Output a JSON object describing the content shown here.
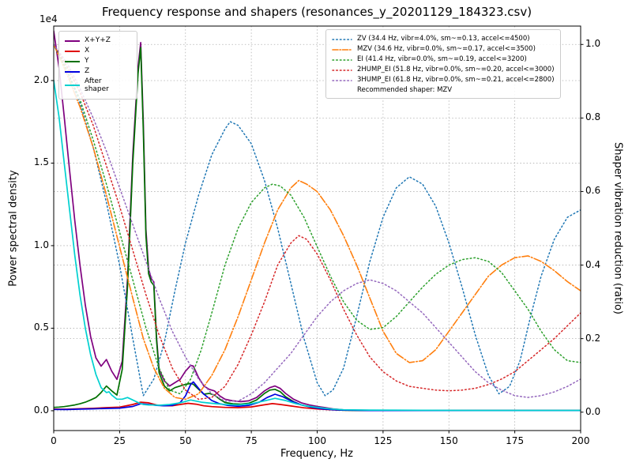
{
  "chart_data": {
    "type": "line",
    "title": "Frequency response and shapers (resonances_y_20201129_184323.csv)",
    "xlabel": "Frequency, Hz",
    "xlim": [
      0,
      200
    ],
    "x_ticks": [
      0,
      25,
      50,
      75,
      100,
      125,
      150,
      175,
      200
    ],
    "grid": true,
    "left_axis": {
      "label": "Power spectral density",
      "offset_text": "1e4",
      "ticks": [
        "0.0",
        "0.5",
        "1.0",
        "1.5",
        "2.0"
      ],
      "tick_values": [
        0,
        5000,
        10000,
        15000,
        20000
      ],
      "ylim": [
        -1200,
        23300
      ]
    },
    "right_axis": {
      "label": "Shaper vibration reduction (ratio)",
      "ticks": [
        "0.0",
        "0.2",
        "0.4",
        "0.6",
        "0.8",
        "1.0"
      ],
      "tick_values": [
        0,
        0.2,
        0.4,
        0.6,
        0.8,
        1.0
      ],
      "ylim": [
        -0.05,
        1.05
      ]
    },
    "legend_note": "Recommended shaper: MZV",
    "psd_series": [
      {
        "id": "xyz",
        "name": "X+Y+Z",
        "color": "#7f007f",
        "style": "solid",
        "width": 1.7,
        "x": [
          0,
          2,
          4,
          6,
          8,
          10,
          12,
          14,
          16,
          18,
          20,
          22,
          24,
          26,
          28,
          30,
          32,
          33,
          34,
          35,
          36,
          37,
          38,
          39,
          40,
          42,
          44,
          46,
          48,
          50,
          52,
          53,
          55,
          57,
          59,
          61,
          63,
          65,
          68,
          71,
          74,
          77,
          80,
          82,
          84,
          86,
          88,
          91,
          94,
          97,
          100,
          103,
          106,
          110,
          115,
          120,
          130,
          140,
          150,
          160,
          170,
          180,
          190,
          200
        ],
        "y": [
          23000,
          20800,
          17800,
          14600,
          11500,
          8800,
          6400,
          4500,
          3200,
          2700,
          3100,
          2400,
          1900,
          3000,
          8000,
          15500,
          20800,
          22300,
          17500,
          11000,
          8600,
          8000,
          7800,
          4500,
          2500,
          1800,
          1500,
          1700,
          1900,
          2400,
          2750,
          2700,
          2000,
          1500,
          1300,
          1200,
          900,
          700,
          600,
          550,
          600,
          800,
          1200,
          1400,
          1500,
          1350,
          1050,
          700,
          480,
          350,
          260,
          190,
          110,
          50,
          35,
          28,
          22,
          20,
          20,
          20,
          20,
          20,
          20,
          20
        ]
      },
      {
        "id": "x",
        "name": "X",
        "color": "#e00000",
        "style": "solid",
        "width": 1.7,
        "x": [
          0,
          5,
          10,
          15,
          20,
          25,
          30,
          33,
          36,
          39,
          42,
          45,
          48,
          51,
          54,
          57,
          60,
          65,
          70,
          75,
          80,
          83,
          86,
          90,
          95,
          100,
          105,
          110,
          120,
          140,
          160,
          180,
          200
        ],
        "y": [
          100,
          90,
          120,
          150,
          190,
          220,
          380,
          520,
          480,
          350,
          300,
          300,
          380,
          450,
          400,
          300,
          250,
          200,
          190,
          230,
          360,
          430,
          380,
          290,
          180,
          110,
          60,
          30,
          20,
          15,
          12,
          10,
          10
        ]
      },
      {
        "id": "y",
        "name": "Y",
        "color": "#007000",
        "style": "solid",
        "width": 1.7,
        "x": [
          0,
          2,
          4,
          6,
          8,
          10,
          12,
          14,
          16,
          18,
          20,
          22,
          24,
          26,
          28,
          30,
          32,
          33,
          34,
          35,
          36,
          37,
          38,
          39,
          40,
          42,
          44,
          46,
          48,
          50,
          52,
          53,
          55,
          57,
          59,
          61,
          63,
          65,
          68,
          71,
          74,
          77,
          80,
          82,
          84,
          86,
          88,
          91,
          94,
          97,
          100,
          103,
          106,
          110,
          115,
          120,
          130,
          140,
          150,
          160,
          170,
          180,
          190,
          200
        ],
        "y": [
          200,
          220,
          250,
          300,
          350,
          420,
          520,
          650,
          800,
          1100,
          1500,
          1200,
          950,
          2500,
          7500,
          15000,
          20400,
          22000,
          17000,
          10600,
          8300,
          7800,
          7600,
          4300,
          2300,
          1500,
          1200,
          1400,
          1500,
          1600,
          1650,
          1600,
          1300,
          1000,
          1050,
          950,
          700,
          500,
          420,
          400,
          450,
          650,
          1050,
          1250,
          1300,
          1150,
          850,
          550,
          350,
          250,
          180,
          120,
          70,
          30,
          20,
          15,
          12,
          10,
          10,
          10,
          10,
          10,
          10,
          10
        ]
      },
      {
        "id": "z",
        "name": "Z",
        "color": "#0000e0",
        "style": "solid",
        "width": 1.7,
        "x": [
          0,
          5,
          10,
          15,
          20,
          25,
          30,
          33,
          36,
          39,
          42,
          45,
          48,
          50,
          52,
          53,
          55,
          57,
          60,
          63,
          66,
          70,
          74,
          78,
          81,
          84,
          87,
          90,
          94,
          98,
          102,
          106,
          110,
          120,
          140,
          160,
          180,
          200
        ],
        "y": [
          80,
          75,
          95,
          115,
          140,
          160,
          260,
          420,
          380,
          320,
          300,
          320,
          500,
          900,
          1600,
          1750,
          1350,
          1000,
          620,
          420,
          320,
          270,
          320,
          520,
          800,
          1000,
          850,
          600,
          350,
          200,
          110,
          60,
          35,
          15,
          10,
          10,
          10,
          10
        ]
      },
      {
        "id": "after_shaper",
        "name": "After\nshaper",
        "color": "#00d0d0",
        "style": "solid",
        "width": 1.7,
        "x": [
          0,
          2,
          4,
          6,
          8,
          10,
          12,
          14,
          16,
          18,
          20,
          21,
          22,
          24,
          26,
          28,
          30,
          32,
          34,
          36,
          38,
          40,
          44,
          48,
          52,
          56,
          60,
          65,
          70,
          75,
          80,
          84,
          88,
          92,
          96,
          100,
          105,
          110,
          120,
          140,
          160,
          180,
          200
        ],
        "y": [
          20000,
          17800,
          15000,
          12200,
          9400,
          7000,
          5000,
          3400,
          2200,
          1400,
          1100,
          1150,
          950,
          700,
          700,
          800,
          650,
          500,
          380,
          350,
          350,
          330,
          380,
          480,
          650,
          520,
          450,
          380,
          350,
          420,
          600,
          750,
          620,
          420,
          290,
          200,
          110,
          60,
          40,
          25,
          20,
          20,
          20
        ]
      }
    ],
    "shaper_series": [
      {
        "id": "zv",
        "name": "ZV",
        "label": "ZV (34.4 Hz, vibr=4.0%, sm~=0.13, accel<=4500)",
        "color": "#1f77b4",
        "style": "dotted",
        "width": 1.5,
        "x": [
          0,
          5,
          10,
          15,
          20,
          25,
          30,
          34,
          38,
          42,
          46,
          50,
          55,
          60,
          65,
          67,
          70,
          75,
          80,
          85,
          90,
          95,
          100,
          103,
          106,
          110,
          115,
          120,
          125,
          130,
          135,
          140,
          145,
          150,
          155,
          160,
          165,
          169,
          173,
          177,
          181,
          185,
          190,
          195,
          200
        ],
        "y": [
          1.0,
          0.93,
          0.84,
          0.72,
          0.57,
          0.4,
          0.2,
          0.045,
          0.09,
          0.19,
          0.33,
          0.46,
          0.59,
          0.7,
          0.77,
          0.79,
          0.78,
          0.73,
          0.63,
          0.5,
          0.35,
          0.2,
          0.08,
          0.045,
          0.06,
          0.12,
          0.26,
          0.41,
          0.53,
          0.61,
          0.64,
          0.62,
          0.56,
          0.46,
          0.34,
          0.21,
          0.1,
          0.05,
          0.07,
          0.14,
          0.26,
          0.37,
          0.47,
          0.53,
          0.55
        ]
      },
      {
        "id": "mzv",
        "name": "MZV",
        "label": "MZV (34.6 Hz, vibr=0.0%, sm~=0.17, accel<=3500)",
        "color": "#ff7f0e",
        "style": "dashdot",
        "width": 1.6,
        "x": [
          0,
          5,
          10,
          15,
          20,
          25,
          30,
          34,
          38,
          42,
          46,
          50,
          55,
          60,
          65,
          70,
          75,
          80,
          85,
          90,
          93,
          96,
          100,
          105,
          110,
          115,
          120,
          125,
          130,
          135,
          140,
          145,
          150,
          155,
          160,
          165,
          170,
          175,
          180,
          185,
          190,
          195,
          200
        ],
        "y": [
          1.0,
          0.92,
          0.83,
          0.72,
          0.59,
          0.45,
          0.31,
          0.2,
          0.12,
          0.065,
          0.04,
          0.035,
          0.05,
          0.1,
          0.17,
          0.26,
          0.36,
          0.46,
          0.55,
          0.61,
          0.63,
          0.62,
          0.6,
          0.55,
          0.48,
          0.4,
          0.31,
          0.22,
          0.16,
          0.135,
          0.14,
          0.17,
          0.22,
          0.27,
          0.32,
          0.37,
          0.4,
          0.42,
          0.425,
          0.41,
          0.385,
          0.355,
          0.33
        ]
      },
      {
        "id": "ei",
        "name": "EI",
        "label": "EI (41.4 Hz, vibr=0.0%, sm~=0.19, accel<=3200)",
        "color": "#2ca02c",
        "style": "dotted",
        "width": 1.5,
        "x": [
          0,
          5,
          10,
          15,
          20,
          25,
          30,
          35,
          40,
          44,
          48,
          52,
          56,
          60,
          65,
          70,
          75,
          80,
          83,
          86,
          90,
          95,
          100,
          105,
          110,
          115,
          120,
          125,
          130,
          135,
          140,
          145,
          150,
          155,
          160,
          165,
          170,
          175,
          180,
          185,
          190,
          195,
          200
        ],
        "y": [
          1.0,
          0.93,
          0.85,
          0.74,
          0.62,
          0.49,
          0.36,
          0.23,
          0.12,
          0.06,
          0.05,
          0.09,
          0.17,
          0.27,
          0.4,
          0.5,
          0.57,
          0.61,
          0.62,
          0.615,
          0.59,
          0.53,
          0.45,
          0.37,
          0.3,
          0.25,
          0.225,
          0.23,
          0.26,
          0.3,
          0.34,
          0.375,
          0.4,
          0.415,
          0.42,
          0.41,
          0.38,
          0.33,
          0.28,
          0.22,
          0.17,
          0.14,
          0.135
        ]
      },
      {
        "id": "2hump_ei",
        "name": "2HUMP_EI",
        "label": "2HUMP_EI (51.8 Hz, vibr=0.0%, sm~=0.20, accel<=3000)",
        "color": "#d62728",
        "style": "dotted",
        "width": 1.5,
        "x": [
          0,
          5,
          10,
          15,
          20,
          25,
          30,
          35,
          40,
          45,
          50,
          55,
          60,
          65,
          70,
          75,
          80,
          85,
          90,
          93,
          96,
          100,
          105,
          110,
          115,
          120,
          125,
          130,
          135,
          140,
          145,
          150,
          155,
          160,
          165,
          170,
          175,
          180,
          185,
          190,
          195,
          200
        ],
        "y": [
          1.0,
          0.94,
          0.87,
          0.78,
          0.67,
          0.56,
          0.44,
          0.32,
          0.21,
          0.12,
          0.06,
          0.035,
          0.04,
          0.07,
          0.13,
          0.21,
          0.3,
          0.4,
          0.46,
          0.48,
          0.47,
          0.43,
          0.36,
          0.28,
          0.21,
          0.15,
          0.11,
          0.085,
          0.07,
          0.065,
          0.06,
          0.058,
          0.06,
          0.065,
          0.075,
          0.09,
          0.11,
          0.14,
          0.17,
          0.2,
          0.235,
          0.27
        ]
      },
      {
        "id": "3hump_ei",
        "name": "3HUMP_EI",
        "label": "3HUMP_EI (61.8 Hz, vibr=0.0%, sm~=0.21, accel<=2800)",
        "color": "#9467bd",
        "style": "dotted",
        "width": 1.5,
        "x": [
          0,
          5,
          10,
          15,
          20,
          25,
          30,
          35,
          40,
          45,
          50,
          55,
          60,
          65,
          70,
          75,
          80,
          85,
          90,
          95,
          100,
          105,
          110,
          115,
          120,
          125,
          130,
          135,
          140,
          145,
          150,
          155,
          160,
          165,
          170,
          175,
          180,
          185,
          190,
          195,
          200
        ],
        "y": [
          1.0,
          0.95,
          0.88,
          0.8,
          0.71,
          0.61,
          0.51,
          0.41,
          0.31,
          0.22,
          0.15,
          0.09,
          0.05,
          0.03,
          0.03,
          0.05,
          0.08,
          0.12,
          0.16,
          0.21,
          0.26,
          0.3,
          0.33,
          0.35,
          0.36,
          0.35,
          0.33,
          0.3,
          0.27,
          0.23,
          0.19,
          0.15,
          0.11,
          0.08,
          0.06,
          0.045,
          0.04,
          0.045,
          0.055,
          0.07,
          0.09
        ]
      }
    ]
  }
}
